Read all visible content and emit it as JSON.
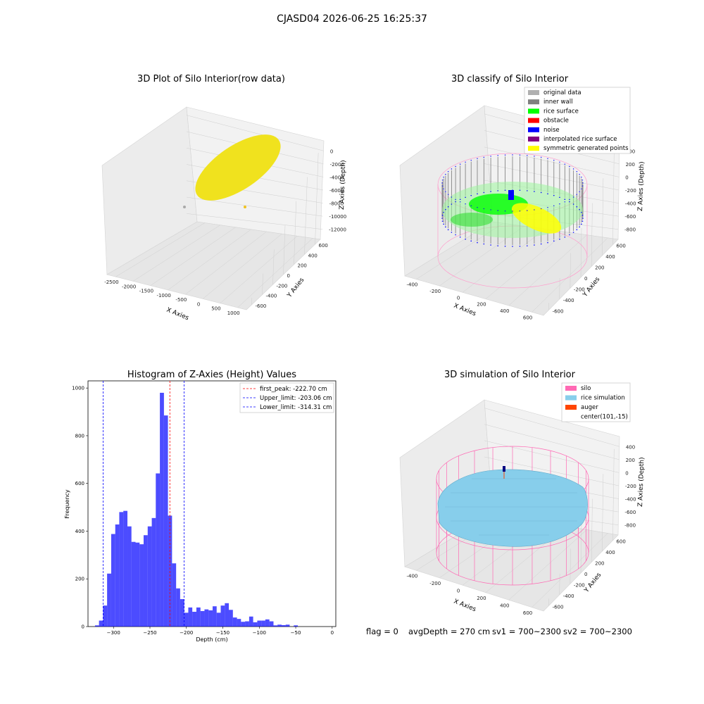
{
  "suptitle": "CJASD04 2026-06-25 16:25:37",
  "panels": {
    "raw": {
      "title": "3D Plot of Silo Interior(row data)",
      "xlabel": "X Axies",
      "ylabel": "Y Axies",
      "zlabel": "Z Axies (Depth)",
      "xticks": [
        "-2500",
        "-2000",
        "-1500",
        "-1000",
        "-500",
        "0",
        "500",
        "1000"
      ],
      "yticks": [
        "600",
        "400",
        "200",
        "0",
        "-200",
        "-400",
        "-600"
      ],
      "zticks": [
        "0",
        "-2000",
        "-4000",
        "-6000",
        "-8000",
        "-10000",
        "-12000"
      ],
      "point_color": "#f0e21e"
    },
    "classify": {
      "title": "3D classify of Silo Interior",
      "xlabel": "X Axies",
      "ylabel": "Y Axies",
      "zlabel": "Z Axies (Depth)",
      "xticks": [
        "-400",
        "-200",
        "0",
        "200",
        "400",
        "600"
      ],
      "yticks": [
        "600",
        "400",
        "200",
        "0",
        "-200",
        "-400",
        "-600"
      ],
      "zticks": [
        "400",
        "200",
        "0",
        "-200",
        "-400",
        "-600",
        "-800"
      ],
      "legend": [
        {
          "label": "original data",
          "color": "#b0b0b0"
        },
        {
          "label": "inner wall",
          "color": "#808080"
        },
        {
          "label": "rice surface",
          "color": "#00ff00"
        },
        {
          "label": "obstacle",
          "color": "#ff0000"
        },
        {
          "label": "noise",
          "color": "#0000ff"
        },
        {
          "label": "interpolated rice surface",
          "color": "#800080"
        },
        {
          "label": "symmetric generated points",
          "color": "#ffff00"
        }
      ]
    },
    "simulation": {
      "title": "3D simulation of Silo Interior",
      "xlabel": "X Axies",
      "ylabel": "Y Axies",
      "zlabel": "Z Axies (Depth)",
      "xticks": [
        "-400",
        "-200",
        "0",
        "200",
        "400",
        "600"
      ],
      "yticks": [
        "600",
        "400",
        "200",
        "0",
        "-200",
        "-400",
        "-600"
      ],
      "zticks": [
        "400",
        "200",
        "0",
        "-200",
        "-400",
        "-600",
        "-800"
      ],
      "legend": [
        {
          "label": "silo",
          "color": "#ff69b4"
        },
        {
          "label": "rice simulation",
          "color": "#87ceeb"
        },
        {
          "label": "auger",
          "color": "#ff4500"
        },
        {
          "label": "center(101,-15)",
          "color": ""
        }
      ]
    }
  },
  "status": {
    "flag": "flag = 0",
    "avg": "avgDepth = 270 cm",
    "sv1": "sv1 = 700~2300",
    "sv2": "sv2 = 700~2300"
  },
  "chart_data": [
    {
      "type": "bar",
      "title": "Histogram of Z-Axies (Height) Values",
      "xlabel": "Depth (cm)",
      "ylabel": "Frequency",
      "xlim": [
        -335,
        5
      ],
      "ylim": [
        0,
        1030
      ],
      "xticks": [
        -300,
        -250,
        -200,
        -150,
        -100,
        -50,
        0
      ],
      "yticks": [
        0,
        200,
        400,
        600,
        800,
        1000
      ],
      "bar_color": "#0000ff",
      "bins": [
        {
          "left": -325.4,
          "right": -319.9,
          "value": 5
        },
        {
          "left": -319.9,
          "right": -314.3,
          "value": 25
        },
        {
          "left": -314.3,
          "right": -308.8,
          "value": 88
        },
        {
          "left": -308.8,
          "right": -303.2,
          "value": 222
        },
        {
          "left": -303.2,
          "right": -297.6,
          "value": 388
        },
        {
          "left": -297.6,
          "right": -292.1,
          "value": 428
        },
        {
          "left": -292.1,
          "right": -286.5,
          "value": 480
        },
        {
          "left": -286.5,
          "right": -280.9,
          "value": 485
        },
        {
          "left": -280.9,
          "right": -275.4,
          "value": 420
        },
        {
          "left": -275.4,
          "right": -269.8,
          "value": 355
        },
        {
          "left": -269.8,
          "right": -264.2,
          "value": 352
        },
        {
          "left": -264.2,
          "right": -258.7,
          "value": 345
        },
        {
          "left": -258.7,
          "right": -253.1,
          "value": 383
        },
        {
          "left": -253.1,
          "right": -247.5,
          "value": 420
        },
        {
          "left": -247.5,
          "right": -242.0,
          "value": 455
        },
        {
          "left": -242.0,
          "right": -236.4,
          "value": 642
        },
        {
          "left": -236.4,
          "right": -230.8,
          "value": 980
        },
        {
          "left": -230.8,
          "right": -225.3,
          "value": 885
        },
        {
          "left": -225.3,
          "right": -219.7,
          "value": 465
        },
        {
          "left": -219.7,
          "right": -214.1,
          "value": 265
        },
        {
          "left": -214.1,
          "right": -208.6,
          "value": 160
        },
        {
          "left": -208.6,
          "right": -203.0,
          "value": 115
        },
        {
          "left": -203.0,
          "right": -197.4,
          "value": 58
        },
        {
          "left": -197.4,
          "right": -191.9,
          "value": 80
        },
        {
          "left": -191.9,
          "right": -186.3,
          "value": 62
        },
        {
          "left": -186.3,
          "right": -180.7,
          "value": 80
        },
        {
          "left": -180.7,
          "right": -175.2,
          "value": 65
        },
        {
          "left": -175.2,
          "right": -169.6,
          "value": 72
        },
        {
          "left": -169.6,
          "right": -164.0,
          "value": 68
        },
        {
          "left": -164.0,
          "right": -158.5,
          "value": 85
        },
        {
          "left": -158.5,
          "right": -152.9,
          "value": 58
        },
        {
          "left": -152.9,
          "right": -147.3,
          "value": 88
        },
        {
          "left": -147.3,
          "right": -141.8,
          "value": 98
        },
        {
          "left": -141.8,
          "right": -136.2,
          "value": 70
        },
        {
          "left": -136.2,
          "right": -130.6,
          "value": 38
        },
        {
          "left": -130.6,
          "right": -125.1,
          "value": 32
        },
        {
          "left": -125.1,
          "right": -119.5,
          "value": 20
        },
        {
          "left": -119.5,
          "right": -113.9,
          "value": 22
        },
        {
          "left": -113.9,
          "right": -108.4,
          "value": 42
        },
        {
          "left": -108.4,
          "right": -102.8,
          "value": 18
        },
        {
          "left": -102.8,
          "right": -97.2,
          "value": 25
        },
        {
          "left": -97.2,
          "right": -91.7,
          "value": 25
        },
        {
          "left": -91.7,
          "right": -86.1,
          "value": 30
        },
        {
          "left": -86.1,
          "right": -80.5,
          "value": 22
        },
        {
          "left": -80.5,
          "right": -75.0,
          "value": 5
        },
        {
          "left": -75.0,
          "right": -69.4,
          "value": 8
        },
        {
          "left": -69.4,
          "right": -63.8,
          "value": 6
        },
        {
          "left": -63.8,
          "right": -58.3,
          "value": 8
        },
        {
          "left": -58.3,
          "right": -52.7,
          "value": 0
        },
        {
          "left": -52.7,
          "right": -47.1,
          "value": 5
        },
        {
          "left": -47.1,
          "right": -41.6,
          "value": 0
        },
        {
          "left": -41.6,
          "right": -36.0,
          "value": 0
        }
      ],
      "vlines": [
        {
          "label": "first_peak: -222.70 cm",
          "x": -222.7,
          "color": "#ff0000"
        },
        {
          "label": "Upper_limit: -203.06 cm",
          "x": -203.06,
          "color": "#0000ff"
        },
        {
          "label": "Lower_limit: -314.31 cm",
          "x": -314.31,
          "color": "#0000ff"
        }
      ],
      "legend_position": "top-right"
    }
  ]
}
